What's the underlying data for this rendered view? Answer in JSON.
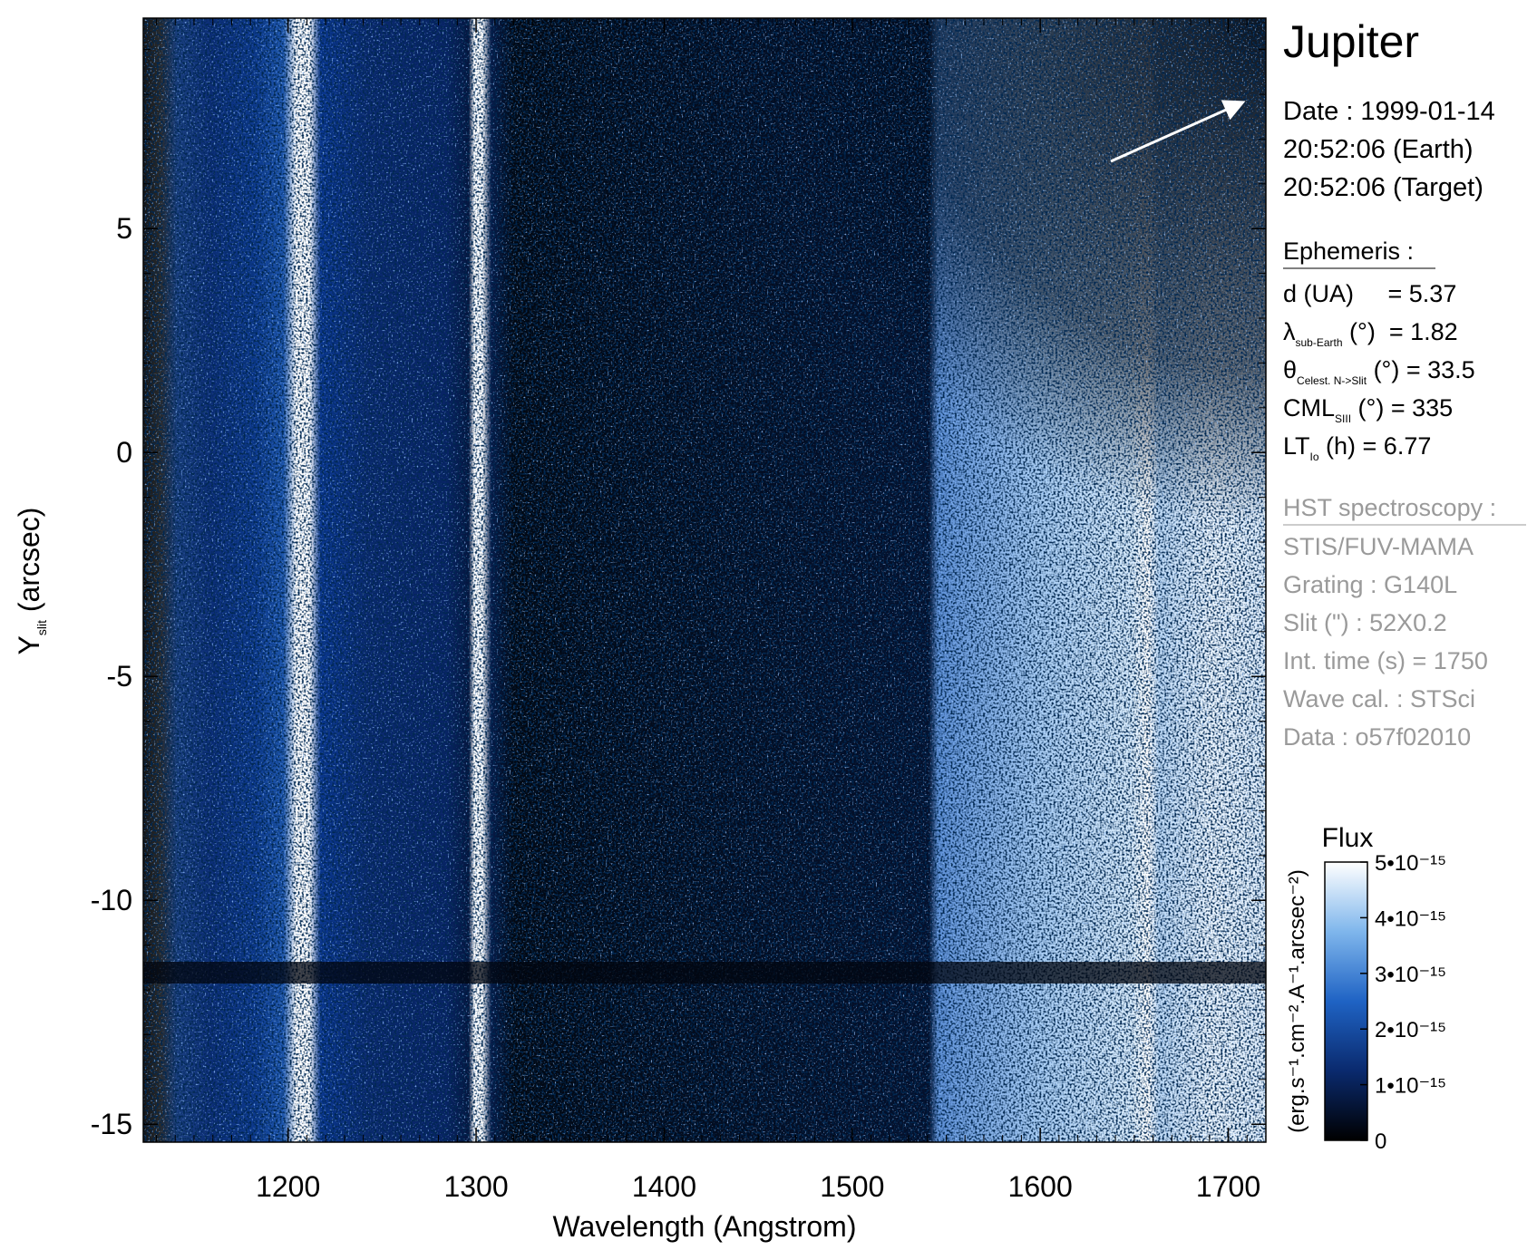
{
  "chart_data": {
    "type": "heatmap",
    "x_label": "Wavelength (Angstrom)",
    "y_label": {
      "main": "Y",
      "sub": "slit",
      "after": " (arcsec)"
    },
    "xlim": [
      1123,
      1720
    ],
    "ylim": [
      -15.4,
      9.7
    ],
    "xticks": [
      1200,
      1300,
      1400,
      1500,
      1600,
      1700
    ],
    "yticks": [
      -15,
      -10,
      -5,
      0,
      5
    ],
    "xminorticks": [
      1130,
      1140,
      1150,
      1160,
      1170,
      1180,
      1190,
      1210,
      1220,
      1230,
      1240,
      1250,
      1260,
      1270,
      1280,
      1290,
      1310,
      1320,
      1330,
      1340,
      1350,
      1360,
      1370,
      1380,
      1390,
      1410,
      1420,
      1430,
      1440,
      1450,
      1460,
      1470,
      1480,
      1490,
      1510,
      1520,
      1530,
      1540,
      1550,
      1560,
      1570,
      1580,
      1590,
      1610,
      1620,
      1630,
      1640,
      1650,
      1660,
      1670,
      1680,
      1690,
      1710
    ],
    "yminorticks": [
      -14,
      -13,
      -12,
      -11,
      -9,
      -8,
      -7,
      -6,
      -4,
      -3,
      -2,
      -1,
      1,
      2,
      3,
      4,
      6,
      7,
      8,
      9
    ],
    "colorbar": {
      "title": "Flux",
      "label": "(erg.s⁻¹.cm⁻².A⁻¹.arcsec⁻²)",
      "lim": [
        0,
        5e-15
      ],
      "ticks": [
        0,
        {
          "value": 1e-15,
          "label": "1•10⁻¹⁵"
        },
        {
          "value": 2e-15,
          "label": "2•10⁻¹⁵"
        },
        {
          "value": 3e-15,
          "label": "3•10⁻¹⁵"
        },
        {
          "value": 4e-15,
          "label": "4•10⁻¹⁵"
        },
        {
          "value": 5e-15,
          "label": "5•10⁻¹⁵"
        }
      ],
      "colormap": [
        "#000000",
        "#0a2a6e",
        "#1f63c4",
        "#7fb6ec",
        "#ffffff"
      ]
    },
    "info": {
      "title": "Jupiter",
      "date_lines": [
        "Date : 1999-01-14",
        "20:52:06 (Earth)",
        "20:52:06 (Target)"
      ],
      "ephemeris_heading": "Ephemeris :",
      "ephemeris": [
        {
          "main": "d (UA)     = 5.37"
        },
        {
          "main": "λ",
          "sub": "sub-Earth",
          "after": " (°)  = 1.82"
        },
        {
          "main": "θ",
          "sub": "Celest. N->Slit",
          "after": " (°) = 33.5"
        },
        {
          "main": "CML",
          "sub": "SIII",
          "after": " (°) = 335"
        },
        {
          "main": "LT",
          "sub": "Io",
          "after": " (h) = 6.77"
        }
      ],
      "hst_heading": "HST spectroscopy :",
      "hst": [
        "STIS/FUV-MAMA",
        "Grating : G140L",
        "Slit (\") : 52X0.2",
        "Int. time (s) = 1750",
        "Wave cal. : STSci",
        "Data : o57f02010"
      ]
    }
  }
}
